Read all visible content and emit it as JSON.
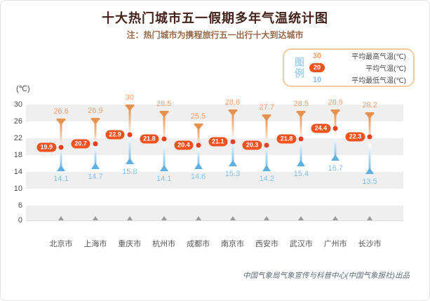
{
  "page": {
    "title": "十大热门城市五一假期多年气温统计图",
    "subtitle": "注：热门城市为携程旅行五一出行十大到达城市",
    "attribution": "中国气象局气象宣传与科普中心(中国气象报社)出品"
  },
  "legend": {
    "label": "图例",
    "items": [
      {
        "value": "30",
        "label": "平均最高气温(℃)",
        "type": "max"
      },
      {
        "value": "20",
        "label": "平均气温(℃)",
        "type": "avg"
      },
      {
        "value": "10",
        "label": "平均最低气温(℃)",
        "type": "min"
      }
    ]
  },
  "chart_data": {
    "type": "range-thermometer",
    "title": "十大热门城市五一假期多年气温统计图",
    "unit_label": "(℃)",
    "y_ticks": [
      30,
      26,
      22,
      18,
      14,
      10,
      6,
      0
    ],
    "ylim": [
      0,
      30
    ],
    "grid": "alternating-horizontal-bands",
    "legend_position": "top-right",
    "categories": [
      "北京市",
      "上海市",
      "重庆市",
      "杭州市",
      "成都市",
      "南京市",
      "西安市",
      "武汉市",
      "广州市",
      "长沙市"
    ],
    "series": [
      {
        "name": "平均最高气温(℃)",
        "values": [
          26.6,
          26.9,
          30,
          28.5,
          25.5,
          28.8,
          27.7,
          28.5,
          28.9,
          28.2
        ]
      },
      {
        "name": "平均气温(℃)",
        "values": [
          19.9,
          20.7,
          22.9,
          21.8,
          20.4,
          21.1,
          20.3,
          21.8,
          24.4,
          22.3
        ]
      },
      {
        "name": "平均最低气温(℃)",
        "values": [
          14.1,
          14.7,
          15.8,
          14.1,
          14.6,
          15.3,
          14.2,
          15.4,
          16.7,
          13.5
        ]
      }
    ],
    "colors": {
      "max_label": "#efa071",
      "cap": "#e8924f",
      "avg_badge": "#f4531f",
      "avg_dot": "#e93f22",
      "min_label": "#85c2e8",
      "min_flare": "#5fb0e0",
      "band": "#efefef",
      "baseline_marker": "#9a9a9a"
    }
  }
}
